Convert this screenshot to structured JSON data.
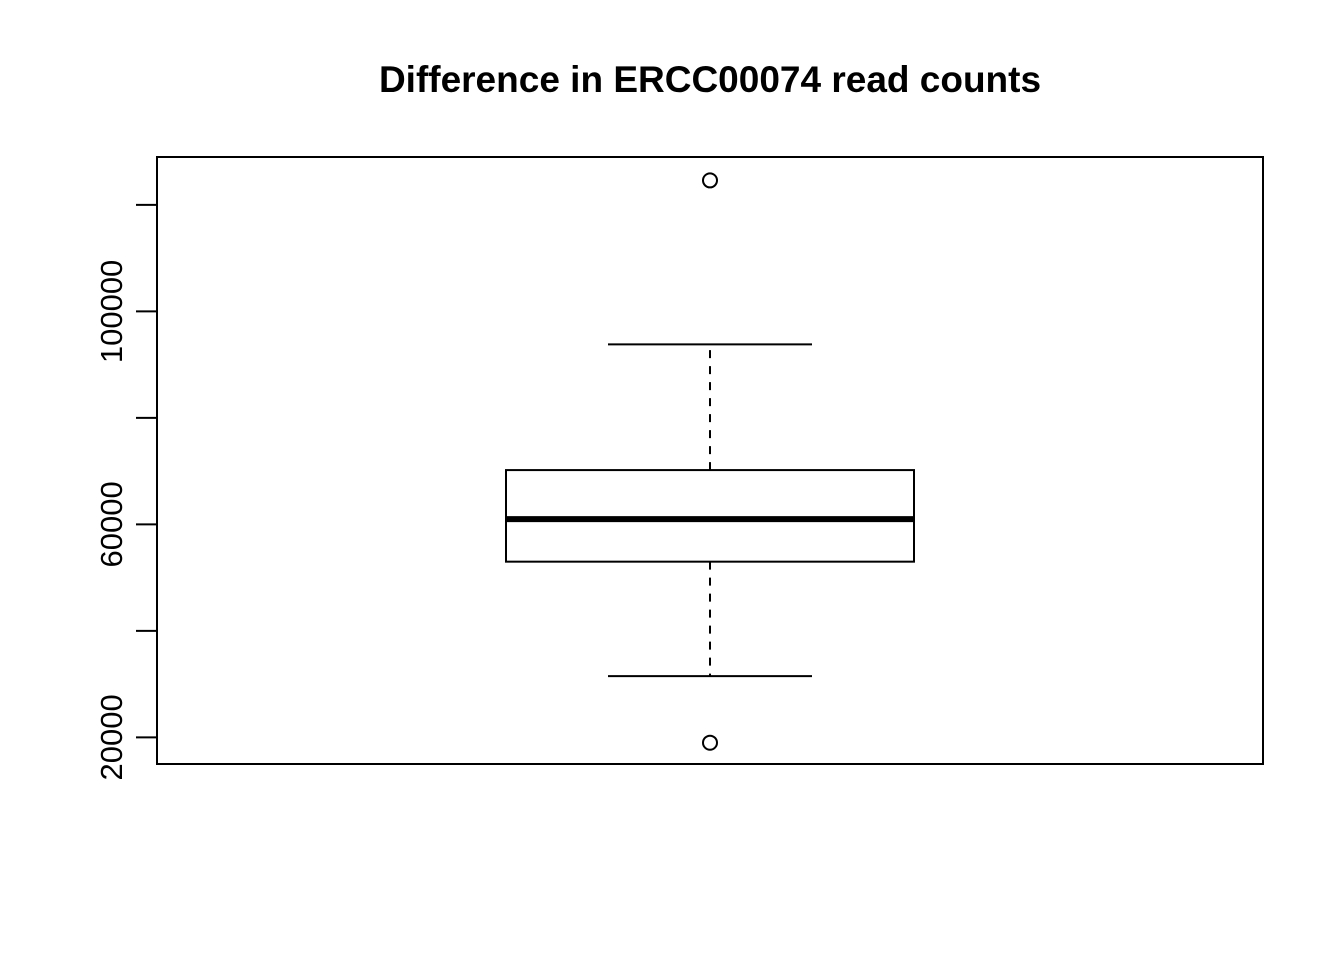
{
  "chart_data": {
    "type": "box",
    "title": "Difference in ERCC00074 read counts",
    "xlabel": "",
    "ylabel": "",
    "ylim": [
      15000,
      129000
    ],
    "y_ticks": [
      20000,
      40000,
      60000,
      80000,
      100000,
      120000
    ],
    "y_tick_labels": [
      "20000",
      "",
      "60000",
      "",
      "100000",
      ""
    ],
    "box": {
      "q1": 53000,
      "median": 61000,
      "q3": 70200,
      "whisker_low": 31500,
      "whisker_high": 93800
    },
    "outliers": [
      19000,
      124600
    ],
    "grid": false,
    "colors": {
      "stroke": "#000000",
      "background": "#ffffff"
    }
  }
}
